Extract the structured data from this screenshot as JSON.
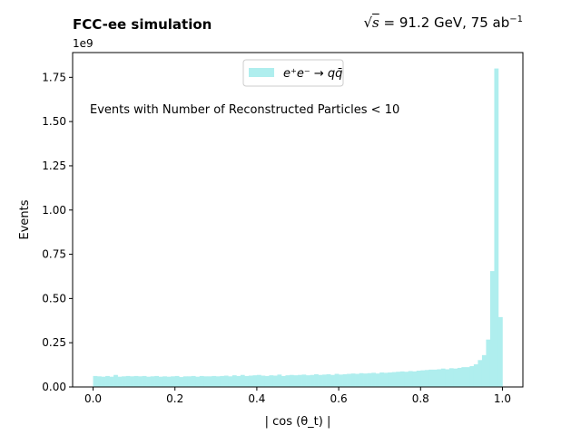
{
  "header": {
    "title_left": "FCC-ee simulation",
    "title_right": {
      "sqrt_symbol": "√",
      "s_symbol": "s",
      "value": " = 91.2 GeV, 75 ab",
      "exponent": "−1"
    }
  },
  "chart_data": {
    "type": "bar",
    "title": "FCC-ee simulation",
    "xlabel": "| cos (θ_t) |",
    "ylabel": "Events",
    "y_multiplier": "1e9",
    "annotation": "Events with Number of Reconstructed Particles < 10",
    "legend": {
      "entry": "e⁺e⁻ → qq̄",
      "placement": "top-center"
    },
    "xlim": [
      -0.05,
      1.05
    ],
    "ylim": [
      0,
      1.89
    ],
    "x_ticks": [
      0.0,
      0.2,
      0.4,
      0.6,
      0.8,
      1.0
    ],
    "x_tick_labels": [
      "0.0",
      "0.2",
      "0.4",
      "0.6",
      "0.8",
      "1.0"
    ],
    "y_ticks": [
      0.0,
      0.25,
      0.5,
      0.75,
      1.0,
      1.25,
      1.5,
      1.75
    ],
    "y_tick_labels": [
      "0.00",
      "0.25",
      "0.50",
      "0.75",
      "1.00",
      "1.25",
      "1.50",
      "1.75"
    ],
    "bin_start": 0.0,
    "bin_width": 0.01,
    "color": "#afeeee",
    "values": [
      0.062,
      0.06,
      0.058,
      0.062,
      0.058,
      0.068,
      0.058,
      0.06,
      0.062,
      0.06,
      0.062,
      0.06,
      0.062,
      0.058,
      0.06,
      0.062,
      0.058,
      0.06,
      0.058,
      0.06,
      0.062,
      0.056,
      0.06,
      0.06,
      0.062,
      0.058,
      0.062,
      0.06,
      0.06,
      0.062,
      0.06,
      0.062,
      0.064,
      0.06,
      0.066,
      0.062,
      0.068,
      0.062,
      0.064,
      0.066,
      0.068,
      0.064,
      0.062,
      0.066,
      0.064,
      0.07,
      0.062,
      0.066,
      0.068,
      0.066,
      0.068,
      0.07,
      0.066,
      0.068,
      0.072,
      0.068,
      0.07,
      0.072,
      0.068,
      0.074,
      0.07,
      0.072,
      0.074,
      0.076,
      0.074,
      0.078,
      0.076,
      0.078,
      0.08,
      0.076,
      0.082,
      0.08,
      0.082,
      0.084,
      0.086,
      0.088,
      0.086,
      0.09,
      0.088,
      0.092,
      0.094,
      0.096,
      0.098,
      0.098,
      0.1,
      0.104,
      0.1,
      0.106,
      0.104,
      0.108,
      0.112,
      0.112,
      0.118,
      0.128,
      0.152,
      0.18,
      0.268,
      0.655,
      1.8,
      0.395
    ]
  }
}
